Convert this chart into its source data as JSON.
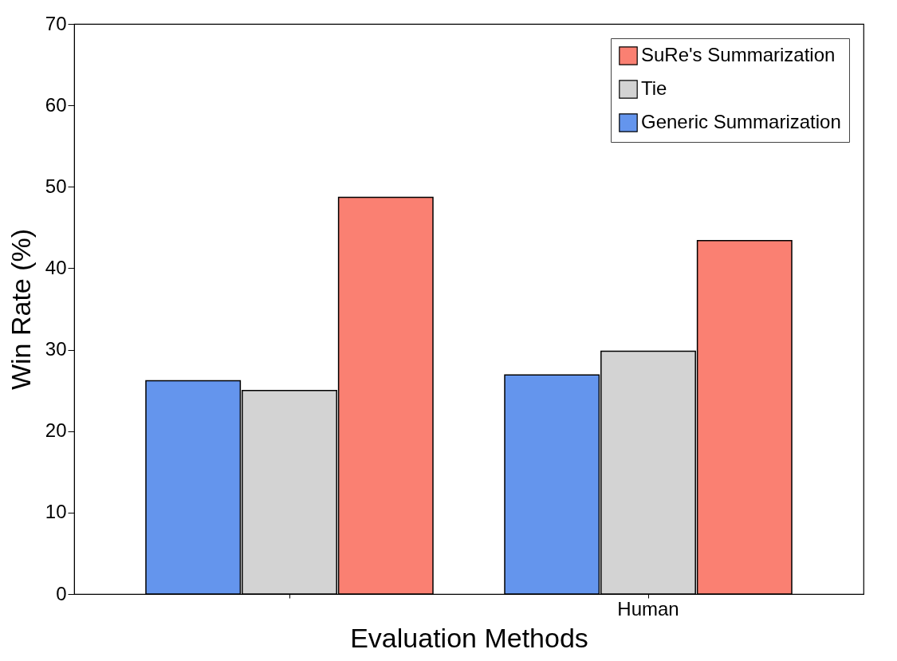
{
  "chart_data": {
    "type": "bar",
    "xlabel": "Evaluation Methods",
    "ylabel": "Win Rate (%)",
    "categories": [
      null,
      "Human"
    ],
    "series": [
      {
        "name": "Generic Summarization",
        "color": "#6495ed",
        "values": [
          26.2,
          26.9
        ]
      },
      {
        "name": "Tie",
        "color": "#d3d3d3",
        "values": [
          25.0,
          29.8
        ]
      },
      {
        "name": "SuRe's Summarization",
        "color": "#fa8072",
        "values": [
          48.7,
          43.4
        ]
      }
    ],
    "ylim": [
      0,
      70
    ],
    "yticks": [
      0,
      10,
      20,
      30,
      40,
      50,
      60,
      70
    ],
    "grid": false,
    "legend": "top right"
  }
}
